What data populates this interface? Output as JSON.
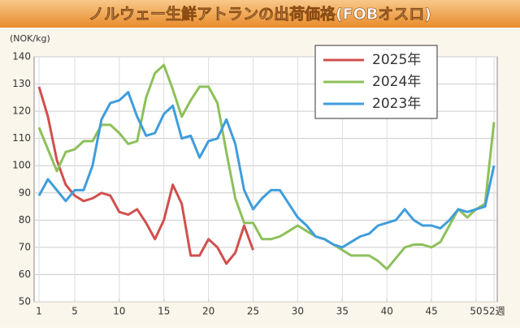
{
  "chart_data": {
    "type": "line",
    "title": "ノルウェー生鮮アトランの出荷価格(FOBオスロ)",
    "y_label": "(NOK/kg)",
    "x": [
      1,
      2,
      3,
      4,
      5,
      6,
      7,
      8,
      9,
      10,
      11,
      12,
      13,
      14,
      15,
      16,
      17,
      18,
      19,
      20,
      21,
      22,
      23,
      24,
      25,
      26,
      27,
      28,
      29,
      30,
      31,
      32,
      33,
      34,
      35,
      36,
      37,
      38,
      39,
      40,
      41,
      42,
      43,
      44,
      45,
      46,
      47,
      48,
      49,
      50,
      51,
      52
    ],
    "xlim": [
      1,
      52
    ],
    "xticks": [
      1,
      5,
      10,
      15,
      20,
      25,
      30,
      35,
      40,
      45,
      50,
      {
        "value": 52,
        "label": "52週"
      }
    ],
    "ylim": [
      50,
      140
    ],
    "yticks": [
      50,
      60,
      70,
      80,
      90,
      100,
      110,
      120,
      130,
      140
    ],
    "grid": true,
    "legend": "upper right",
    "series": [
      {
        "name": "2025年",
        "color": "#d0504e",
        "values": [
          129,
          118,
          102,
          93,
          89,
          87,
          88,
          90,
          89,
          83,
          82,
          84,
          79,
          73,
          80,
          93,
          86,
          67,
          67,
          73,
          70,
          64,
          68,
          78,
          69,
          null,
          null,
          null,
          null,
          null,
          null,
          null,
          null,
          null,
          null,
          null,
          null,
          null,
          null,
          null,
          null,
          null,
          null,
          null,
          null,
          null,
          null,
          null,
          null,
          null,
          null,
          null
        ]
      },
      {
        "name": "2024年",
        "color": "#8dc05a",
        "values": [
          114,
          106,
          98,
          105,
          106,
          109,
          109,
          115,
          115,
          112,
          108,
          109,
          125,
          134,
          137,
          128,
          118,
          124,
          129,
          129,
          123,
          105,
          88,
          79,
          79,
          73,
          73,
          74,
          76,
          78,
          76,
          74,
          73,
          71,
          69,
          67,
          67,
          67,
          65,
          62,
          66,
          70,
          71,
          71,
          70,
          72,
          78,
          84,
          81,
          84,
          86,
          116
        ]
      },
      {
        "name": "2023年",
        "color": "#3f9ddc",
        "values": [
          89,
          95,
          91,
          87,
          91,
          91,
          100,
          117,
          123,
          124,
          127,
          118,
          111,
          112,
          119,
          122,
          110,
          111,
          103,
          109,
          110,
          117,
          108,
          91,
          84,
          88,
          91,
          91,
          86,
          81,
          78,
          74,
          73,
          71,
          70,
          72,
          74,
          75,
          78,
          79,
          80,
          84,
          80,
          78,
          78,
          77,
          80,
          84,
          83,
          84,
          85,
          100
        ]
      }
    ]
  }
}
